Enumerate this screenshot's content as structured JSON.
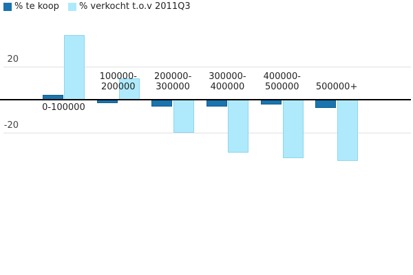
{
  "chart_data": {
    "type": "bar",
    "title": "",
    "xlabel": "",
    "ylabel": "",
    "categories": [
      "0-100000",
      "100000-200000",
      "200000-300000",
      "300000-400000",
      "400000-500000",
      "500000+"
    ],
    "category_label_lines": [
      [
        "0-100000"
      ],
      [
        "100000-",
        "200000"
      ],
      [
        "200000-",
        "300000"
      ],
      [
        "300000-",
        "400000"
      ],
      [
        "400000-",
        "500000"
      ],
      [
        "500000+"
      ]
    ],
    "series": [
      {
        "name": "% te koop",
        "color": "#1b74ad",
        "border_color": "#0e5f91",
        "values": [
          3,
          -2,
          -4,
          -4,
          -3,
          -5
        ]
      },
      {
        "name": "% verkocht t.o.v 2011Q3",
        "color": "#aeeafb",
        "border_color": "#8bd6ee",
        "values": [
          39,
          13,
          -20,
          -32,
          -35,
          -37
        ]
      }
    ],
    "yticks": [
      20,
      -20
    ],
    "ylim": [
      -45,
      42
    ],
    "grid": true,
    "legend_position": "top-left",
    "axis_color": "#000000",
    "gridline_color": "#e0e0e0",
    "background_color": "#ffffff"
  }
}
